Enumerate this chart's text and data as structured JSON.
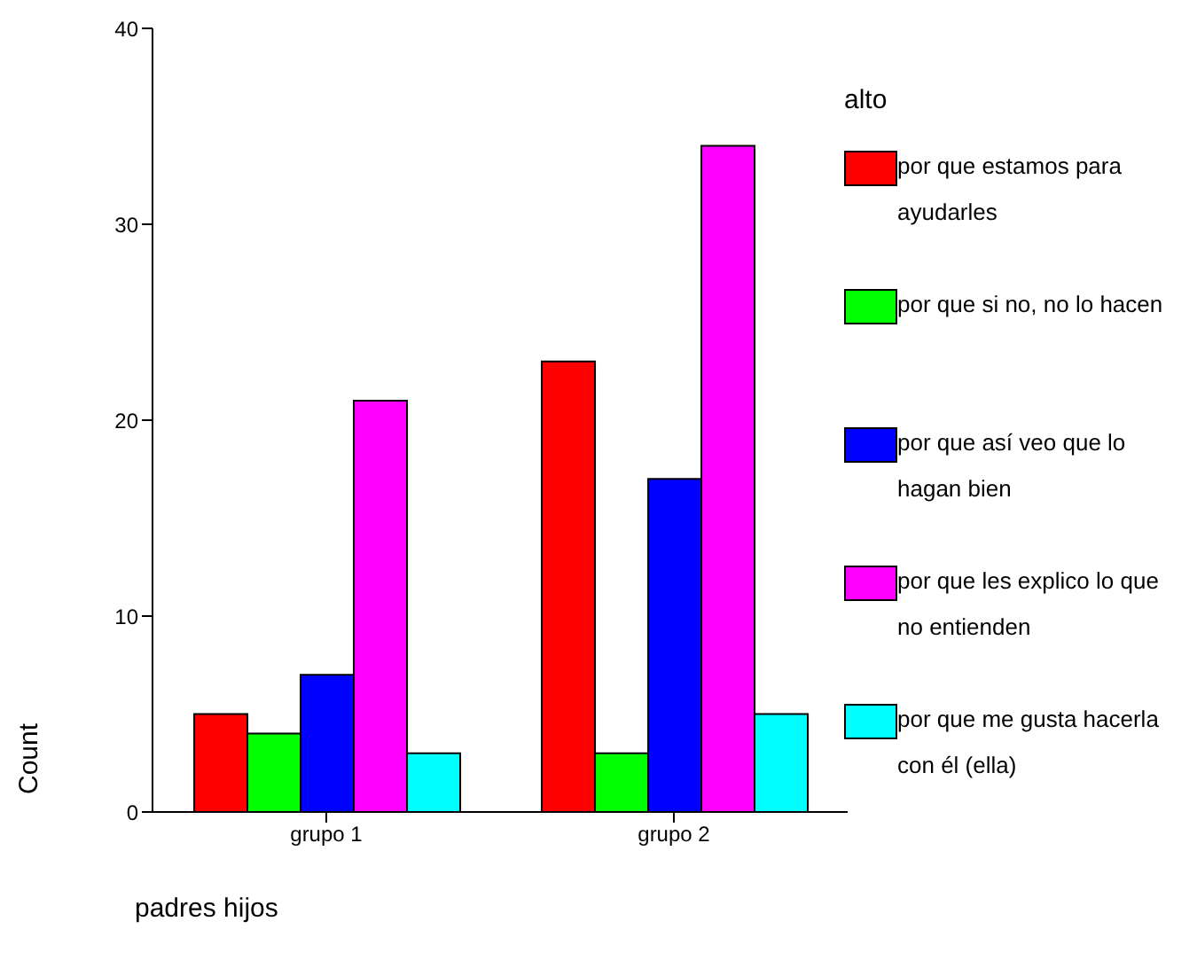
{
  "chart_data": {
    "type": "bar",
    "xlabel": "padres hijos",
    "ylabel": "Count",
    "legend_title": "alto",
    "categories": [
      "grupo 1",
      "grupo 2"
    ],
    "series": [
      {
        "name": "por que estamos para ayudarles",
        "color": "#ff0000",
        "values": [
          5,
          23
        ]
      },
      {
        "name": "por que si no, no lo hacen",
        "color": "#00ff00",
        "values": [
          4,
          3
        ]
      },
      {
        "name": "por que así veo que lo hagan bien",
        "color": "#0000ff",
        "values": [
          7,
          17
        ]
      },
      {
        "name": "por que les explico lo que no entienden",
        "color": "#ff00ff",
        "values": [
          21,
          34
        ]
      },
      {
        "name": "por que me gusta hacerla con él (ella)",
        "color": "#00ffff",
        "values": [
          3,
          5
        ]
      }
    ],
    "ylim": [
      0,
      40
    ],
    "yticks": [
      0,
      10,
      20,
      30,
      40
    ],
    "grid": false,
    "legend": "right"
  }
}
